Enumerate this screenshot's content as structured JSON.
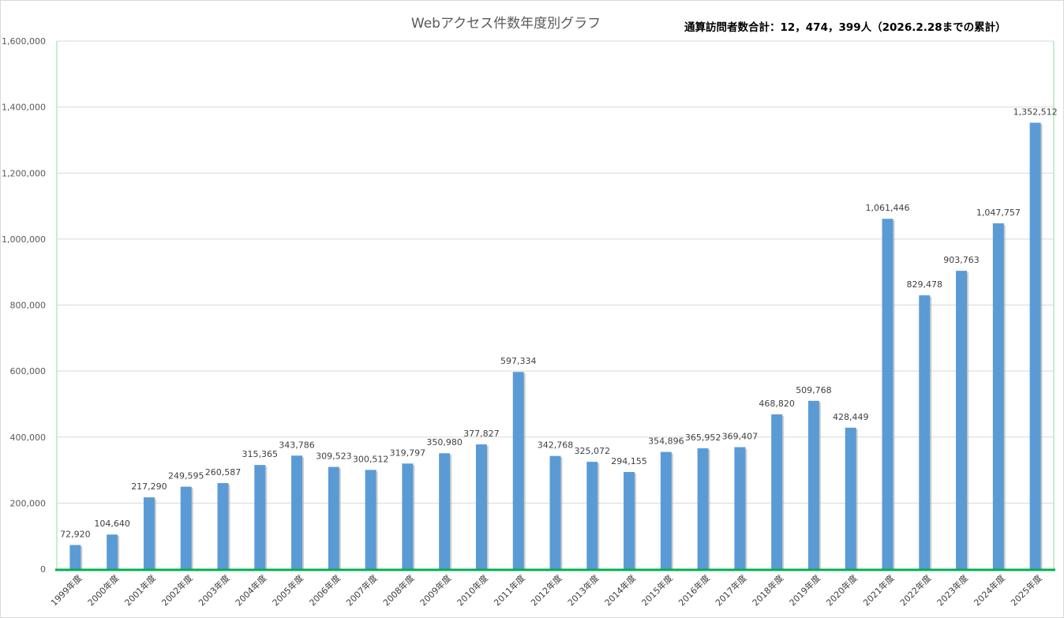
{
  "chart_data": {
    "type": "bar",
    "title": "Webアクセス件数年度別グラフ",
    "subtitle": "通算訪問者数合計：12，474，399人（2026.2.28までの累計）",
    "categories": [
      "1999年度",
      "2000年度",
      "2001年度",
      "2002年度",
      "2003年度",
      "2004年度",
      "2005年度",
      "2006年度",
      "2007年度",
      "2008年度",
      "2009年度",
      "2010年度",
      "2011年度",
      "2012年度",
      "2013年度",
      "2014年度",
      "2015年度",
      "2016年度",
      "2017年度",
      "2018年度",
      "2019年度",
      "2020年度",
      "2021年度",
      "2022年度",
      "2023年度",
      "2024年度",
      "2025年度"
    ],
    "values": [
      72920,
      104640,
      217290,
      249595,
      260587,
      315365,
      343786,
      309523,
      300512,
      319797,
      350980,
      377827,
      597334,
      342768,
      325072,
      294155,
      354896,
      365952,
      369407,
      468820,
      509768,
      428449,
      1061446,
      829478,
      903763,
      1047757,
      1352512
    ],
    "data_labels": [
      "72,920",
      "104,640",
      "217,290",
      "249,595",
      "260,587",
      "315,365",
      "343,786",
      "309,523",
      "300,512",
      "319,797",
      "350,980",
      "377,827",
      "597,334",
      "342,768",
      "325,072",
      "294,155",
      "354,896",
      "365,952",
      "369,407",
      "468,820",
      "509,768",
      "428,449",
      "1,061,446",
      "829,478",
      "903,763",
      "1,047,757",
      "1,352,512"
    ],
    "y_ticks": [
      0,
      200000,
      400000,
      600000,
      800000,
      1000000,
      1200000,
      1400000,
      1600000
    ],
    "y_tick_labels": [
      "0",
      "200,000",
      "400,000",
      "600,000",
      "800,000",
      "1,000,000",
      "1,200,000",
      "1,400,000",
      "1,600,000"
    ],
    "ylim": [
      0,
      1600000
    ],
    "xlabel": "",
    "ylabel": "",
    "grid": true,
    "legend": "none",
    "colors": {
      "bar": "#5b9bd5",
      "bar_shadow": "#a6a6a6",
      "grid": "#d9d9d9",
      "plot_border": "#c6efce",
      "axis_line": "#00b050"
    }
  }
}
